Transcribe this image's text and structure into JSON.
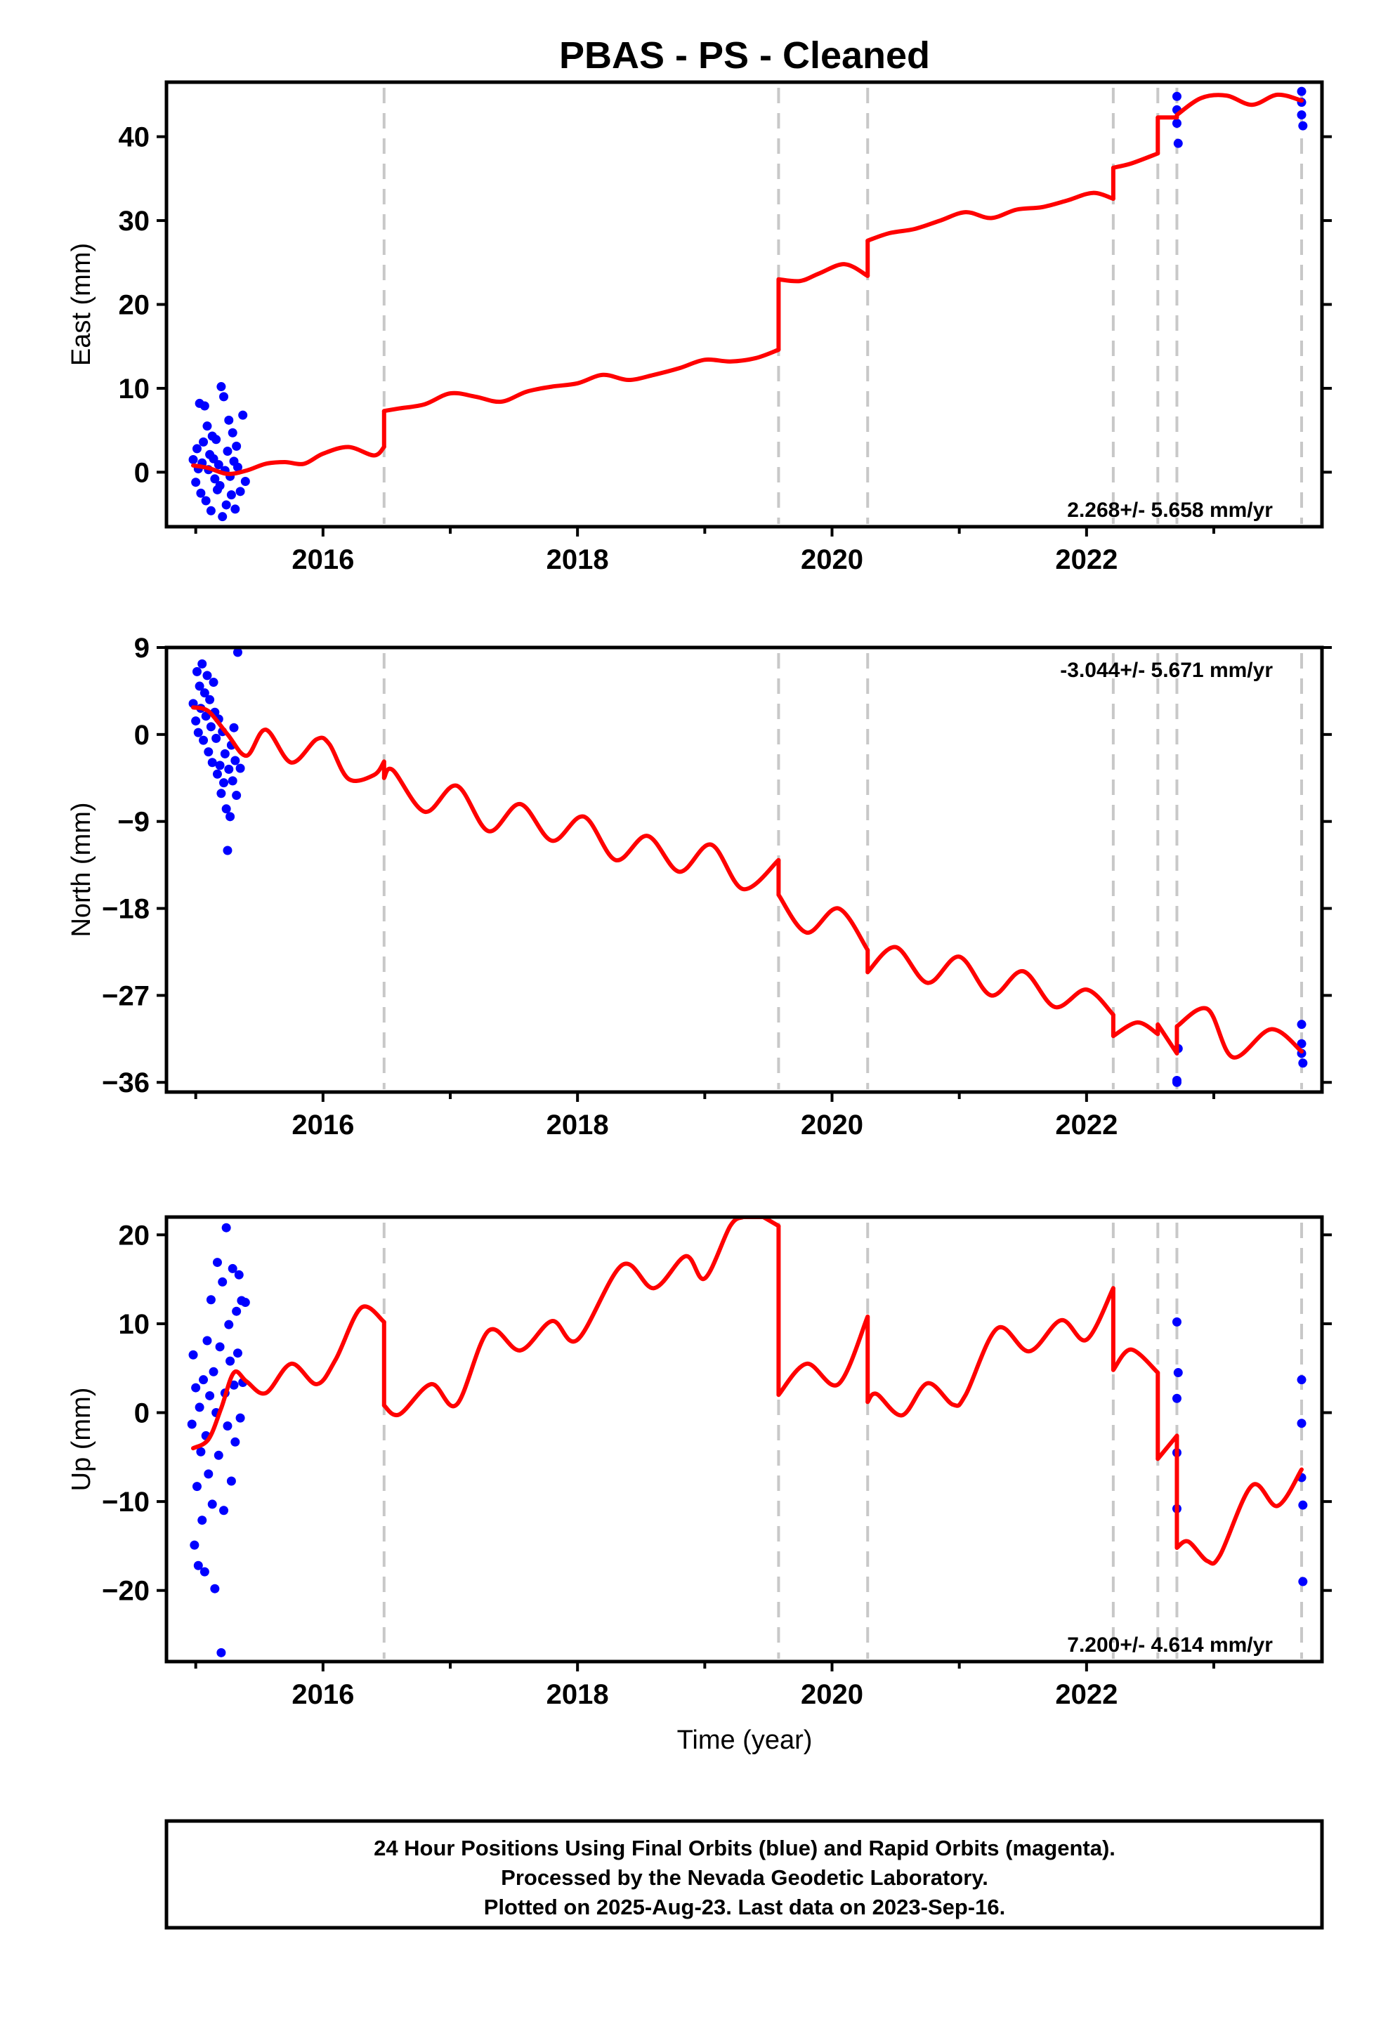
{
  "figure": {
    "title": "PBAS  - PS - Cleaned",
    "time_label": "Time (year)",
    "footer": [
      "24 Hour Positions Using Final Orbits (blue) and Rapid Orbits (magenta).",
      "Processed by the Nevada Geodetic Laboratory.",
      "Plotted on 2025-Aug-23. Last data on 2023-Sep-16."
    ]
  },
  "colors": {
    "observed": "#0000ff",
    "model": "#ff0000",
    "steps": "#c8c8c8",
    "frame": "#000000"
  },
  "chart_data": [
    {
      "type": "scatter",
      "id": "east",
      "ylabel": "East (mm)",
      "xlim": [
        2014.77,
        2023.85
      ],
      "ylim": [
        -6.5,
        46.5
      ],
      "yticks": [
        0,
        10,
        20,
        30,
        40
      ],
      "xticks": [
        2016,
        2018,
        2020,
        2022
      ],
      "rate_text": "2.268+/- 5.658 mm/yr",
      "rate_position": "bottom-right",
      "steps": [
        2016.48,
        2019.58,
        2020.28,
        2022.21,
        2022.56,
        2022.71,
        2023.69
      ],
      "model": {
        "segments": [
          {
            "x": [
              2014.98,
              2015.1,
              2015.25,
              2015.4,
              2015.55,
              2015.7,
              2015.85,
              2016.0,
              2016.2,
              2016.4,
              2016.48
            ],
            "y": [
              0.8,
              0.5,
              -0.2,
              0.2,
              1.0,
              1.2,
              1.0,
              2.2,
              3.0,
              2.0,
              3.0
            ]
          },
          {
            "x": [
              2016.48,
              2016.6,
              2016.8,
              2017.0,
              2017.2,
              2017.4,
              2017.6,
              2017.8,
              2018.0,
              2018.2,
              2018.4,
              2018.6,
              2018.8,
              2019.0,
              2019.2,
              2019.4,
              2019.58
            ],
            "y": [
              7.3,
              7.6,
              8.1,
              9.4,
              9.0,
              8.4,
              9.6,
              10.2,
              10.6,
              11.6,
              11.0,
              11.6,
              12.4,
              13.4,
              13.2,
              13.6,
              14.6
            ]
          },
          {
            "x": [
              2019.58,
              2019.75,
              2019.9,
              2020.1,
              2020.28
            ],
            "y": [
              23.0,
              22.8,
              23.7,
              24.8,
              23.4
            ]
          },
          {
            "x": [
              2020.28,
              2020.45,
              2020.65,
              2020.85,
              2021.05,
              2021.25,
              2021.45,
              2021.65,
              2021.85,
              2022.05,
              2022.21
            ],
            "y": [
              27.6,
              28.5,
              29.0,
              30.0,
              31.0,
              30.3,
              31.3,
              31.6,
              32.4,
              33.3,
              32.6
            ]
          },
          {
            "x": [
              2022.21,
              2022.35,
              2022.56
            ],
            "y": [
              36.3,
              36.8,
              38.0
            ]
          },
          {
            "x": [
              2022.56,
              2022.71
            ],
            "y": [
              42.3,
              42.3
            ]
          },
          {
            "x": [
              2022.71,
              2022.9,
              2023.1,
              2023.3,
              2023.5,
              2023.69
            ],
            "y": [
              42.6,
              44.6,
              44.9,
              43.8,
              45.0,
              44.3
            ]
          }
        ]
      },
      "observed": {
        "x": [
          2014.98,
          2015.0,
          2015.01,
          2015.02,
          2015.03,
          2015.04,
          2015.05,
          2015.06,
          2015.07,
          2015.08,
          2015.09,
          2015.1,
          2015.11,
          2015.12,
          2015.13,
          2015.14,
          2015.15,
          2015.16,
          2015.17,
          2015.18,
          2015.19,
          2015.2,
          2015.21,
          2015.22,
          2015.23,
          2015.24,
          2015.25,
          2015.26,
          2015.27,
          2015.28,
          2015.29,
          2015.3,
          2015.31,
          2015.32,
          2015.33,
          2015.35,
          2015.37,
          2015.39,
          2022.71,
          2022.71,
          2022.71,
          2022.72,
          2023.69,
          2023.69,
          2023.69,
          2023.7
        ],
        "y": [
          1.5,
          -1.2,
          2.8,
          0.4,
          8.2,
          -2.5,
          1.1,
          3.6,
          7.9,
          -3.4,
          5.5,
          0.3,
          2.1,
          -4.6,
          4.3,
          1.6,
          -0.8,
          3.9,
          -2.1,
          0.9,
          -1.6,
          10.2,
          -5.3,
          9.0,
          0.2,
          -3.9,
          2.5,
          6.2,
          -0.5,
          -2.7,
          4.7,
          1.3,
          -4.4,
          3.1,
          0.6,
          -2.3,
          6.8,
          -1.1,
          44.8,
          43.2,
          41.6,
          39.2,
          45.4,
          44.1,
          42.6,
          41.3
        ]
      }
    },
    {
      "type": "scatter",
      "id": "north",
      "ylabel": "North (mm)",
      "xlim": [
        2014.77,
        2023.85
      ],
      "ylim": [
        -37,
        9
      ],
      "yticks": [
        9,
        0,
        -9,
        -18,
        -27,
        -36
      ],
      "xticks": [
        2016,
        2018,
        2020,
        2022
      ],
      "rate_text": "-3.044+/- 5.671 mm/yr",
      "rate_position": "top-right",
      "steps": [
        2016.48,
        2019.58,
        2020.28,
        2022.21,
        2022.56,
        2022.71,
        2023.69
      ],
      "model": {
        "segments": [
          {
            "x": [
              2014.98,
              2015.1,
              2015.25,
              2015.4,
              2015.55,
              2015.75,
              2015.95,
              2016.05,
              2016.2,
              2016.4,
              2016.48
            ],
            "y": [
              2.8,
              2.4,
              0.0,
              -2.2,
              0.5,
              -2.9,
              -0.5,
              -1.0,
              -4.6,
              -4.2,
              -2.8
            ]
          },
          {
            "x": [
              2016.48,
              2016.55,
              2016.8,
              2017.05,
              2017.3,
              2017.55,
              2017.8,
              2018.05,
              2018.3,
              2018.55,
              2018.8,
              2019.05,
              2019.3,
              2019.58
            ],
            "y": [
              -4.5,
              -3.7,
              -8.0,
              -5.3,
              -10.0,
              -7.2,
              -11.0,
              -8.5,
              -13.0,
              -10.5,
              -14.2,
              -11.4,
              -16.0,
              -13.0
            ]
          },
          {
            "x": [
              2019.58,
              2019.8,
              2020.05,
              2020.28
            ],
            "y": [
              -16.6,
              -20.5,
              -18.0,
              -22.3
            ]
          },
          {
            "x": [
              2020.28,
              2020.5,
              2020.75,
              2021.0,
              2021.25,
              2021.5,
              2021.75,
              2022.0,
              2022.21
            ],
            "y": [
              -24.6,
              -22.0,
              -25.7,
              -23.0,
              -27.0,
              -24.5,
              -28.2,
              -26.4,
              -29.0
            ]
          },
          {
            "x": [
              2022.21,
              2022.4,
              2022.56
            ],
            "y": [
              -31.2,
              -29.8,
              -31.0
            ]
          },
          {
            "x": [
              2022.56,
              2022.71
            ],
            "y": [
              -30.0,
              -33.0
            ]
          },
          {
            "x": [
              2022.71,
              2022.95,
              2023.15,
              2023.45,
              2023.69
            ],
            "y": [
              -30.2,
              -28.4,
              -33.4,
              -30.5,
              -32.8
            ]
          }
        ]
      },
      "observed": {
        "x": [
          2014.98,
          2015.0,
          2015.01,
          2015.02,
          2015.03,
          2015.04,
          2015.05,
          2015.06,
          2015.07,
          2015.08,
          2015.09,
          2015.1,
          2015.11,
          2015.12,
          2015.13,
          2015.14,
          2015.15,
          2015.16,
          2015.17,
          2015.18,
          2015.19,
          2015.2,
          2015.21,
          2015.22,
          2015.23,
          2015.24,
          2015.25,
          2015.26,
          2015.27,
          2015.28,
          2015.29,
          2015.3,
          2015.31,
          2015.32,
          2015.33,
          2015.35,
          2022.71,
          2022.71,
          2022.72,
          2023.69,
          2023.69,
          2023.69,
          2023.7
        ],
        "y": [
          3.2,
          1.4,
          6.5,
          0.2,
          5.0,
          2.7,
          7.3,
          -0.6,
          4.3,
          1.9,
          6.1,
          -1.8,
          3.6,
          0.8,
          -2.9,
          5.4,
          2.3,
          -0.4,
          -4.1,
          1.6,
          -3.2,
          -6.1,
          0.3,
          -5.0,
          -2.0,
          -7.7,
          -12.0,
          -3.6,
          -8.5,
          -1.1,
          -4.8,
          0.7,
          -2.7,
          -6.3,
          8.5,
          -3.5,
          -36.0,
          -35.8,
          -32.5,
          -30.0,
          -32.0,
          -33.0,
          -34.0
        ]
      }
    },
    {
      "type": "scatter",
      "id": "up",
      "ylabel": "Up (mm)",
      "xlim": [
        2014.77,
        2023.85
      ],
      "ylim": [
        -28,
        22
      ],
      "yticks": [
        20,
        10,
        0,
        -10,
        -20
      ],
      "xticks": [
        2016,
        2018,
        2020,
        2022
      ],
      "xlabel": "Time (year)",
      "rate_text": "7.200+/- 4.614 mm/yr",
      "rate_position": "bottom-right",
      "steps": [
        2016.48,
        2019.58,
        2020.28,
        2022.21,
        2022.56,
        2022.71,
        2023.69
      ],
      "model": {
        "segments": [
          {
            "x": [
              2014.98,
              2015.1,
              2015.2,
              2015.3,
              2015.4,
              2015.55,
              2015.75,
              2015.95,
              2016.1,
              2016.3,
              2016.48
            ],
            "y": [
              -4.0,
              -3.0,
              0.5,
              4.5,
              3.5,
              2.2,
              5.5,
              3.2,
              6.0,
              11.8,
              10.2
            ]
          },
          {
            "x": [
              2016.48,
              2016.6,
              2016.85,
              2017.05,
              2017.3,
              2017.55,
              2017.8,
              2018.0,
              2018.35,
              2018.6,
              2018.85,
              2019.0,
              2019.2,
              2019.3
            ],
            "y": [
              0.8,
              -0.2,
              3.2,
              0.9,
              9.2,
              7.0,
              10.3,
              8.2,
              16.6,
              14.0,
              17.6,
              15.1,
              21.0,
              22.0
            ]
          },
          {
            "x": [
              2019.46,
              2019.58
            ],
            "y": [
              22.0,
              21.0
            ]
          },
          {
            "x": [
              2019.58,
              2019.8,
              2020.05,
              2020.28
            ],
            "y": [
              2.0,
              5.5,
              3.2,
              10.8
            ]
          },
          {
            "x": [
              2020.28,
              2020.35,
              2020.55,
              2020.75,
              2020.95,
              2021.05,
              2021.3,
              2021.55,
              2021.8,
              2022.0,
              2022.21
            ],
            "y": [
              1.2,
              2.1,
              -0.3,
              3.3,
              0.9,
              2.0,
              9.5,
              6.9,
              10.4,
              8.2,
              14.0
            ]
          },
          {
            "x": [
              2022.21,
              2022.35,
              2022.56
            ],
            "y": [
              4.8,
              7.1,
              4.5
            ]
          },
          {
            "x": [
              2022.56,
              2022.71
            ],
            "y": [
              -5.2,
              -2.6
            ]
          },
          {
            "x": [
              2022.71,
              2022.8,
              2022.95,
              2023.05,
              2023.3,
              2023.5,
              2023.69
            ],
            "y": [
              -15.2,
              -14.5,
              -16.7,
              -16.0,
              -8.2,
              -10.5,
              -6.4
            ]
          }
        ]
      },
      "observed": {
        "x": [
          2014.97,
          2014.98,
          2014.99,
          2015.0,
          2015.01,
          2015.02,
          2015.03,
          2015.04,
          2015.05,
          2015.06,
          2015.07,
          2015.08,
          2015.09,
          2015.1,
          2015.11,
          2015.12,
          2015.13,
          2015.14,
          2015.15,
          2015.16,
          2015.17,
          2015.18,
          2015.19,
          2015.2,
          2015.21,
          2015.22,
          2015.23,
          2015.24,
          2015.25,
          2015.26,
          2015.27,
          2015.28,
          2015.29,
          2015.3,
          2015.31,
          2015.32,
          2015.33,
          2015.34,
          2015.35,
          2015.36,
          2015.37,
          2015.39,
          2022.71,
          2022.71,
          2022.71,
          2022.71,
          2022.72,
          2023.69,
          2023.69,
          2023.69,
          2023.7,
          2023.7
        ],
        "y": [
          -1.3,
          6.5,
          -14.9,
          2.8,
          -8.3,
          -17.2,
          0.6,
          -4.4,
          -12.1,
          3.7,
          -17.9,
          -2.6,
          8.1,
          -6.9,
          1.9,
          12.7,
          -10.3,
          4.6,
          -19.8,
          0.0,
          16.9,
          -4.8,
          7.4,
          -27.0,
          14.7,
          -11.0,
          2.2,
          20.8,
          -1.5,
          9.9,
          5.8,
          -7.7,
          16.2,
          3.1,
          -3.3,
          11.4,
          6.7,
          15.5,
          -0.6,
          12.6,
          3.4,
          12.4,
          10.2,
          1.6,
          -4.5,
          -10.8,
          4.5,
          3.7,
          -1.2,
          -7.3,
          -10.4,
          -19.0
        ]
      }
    }
  ]
}
